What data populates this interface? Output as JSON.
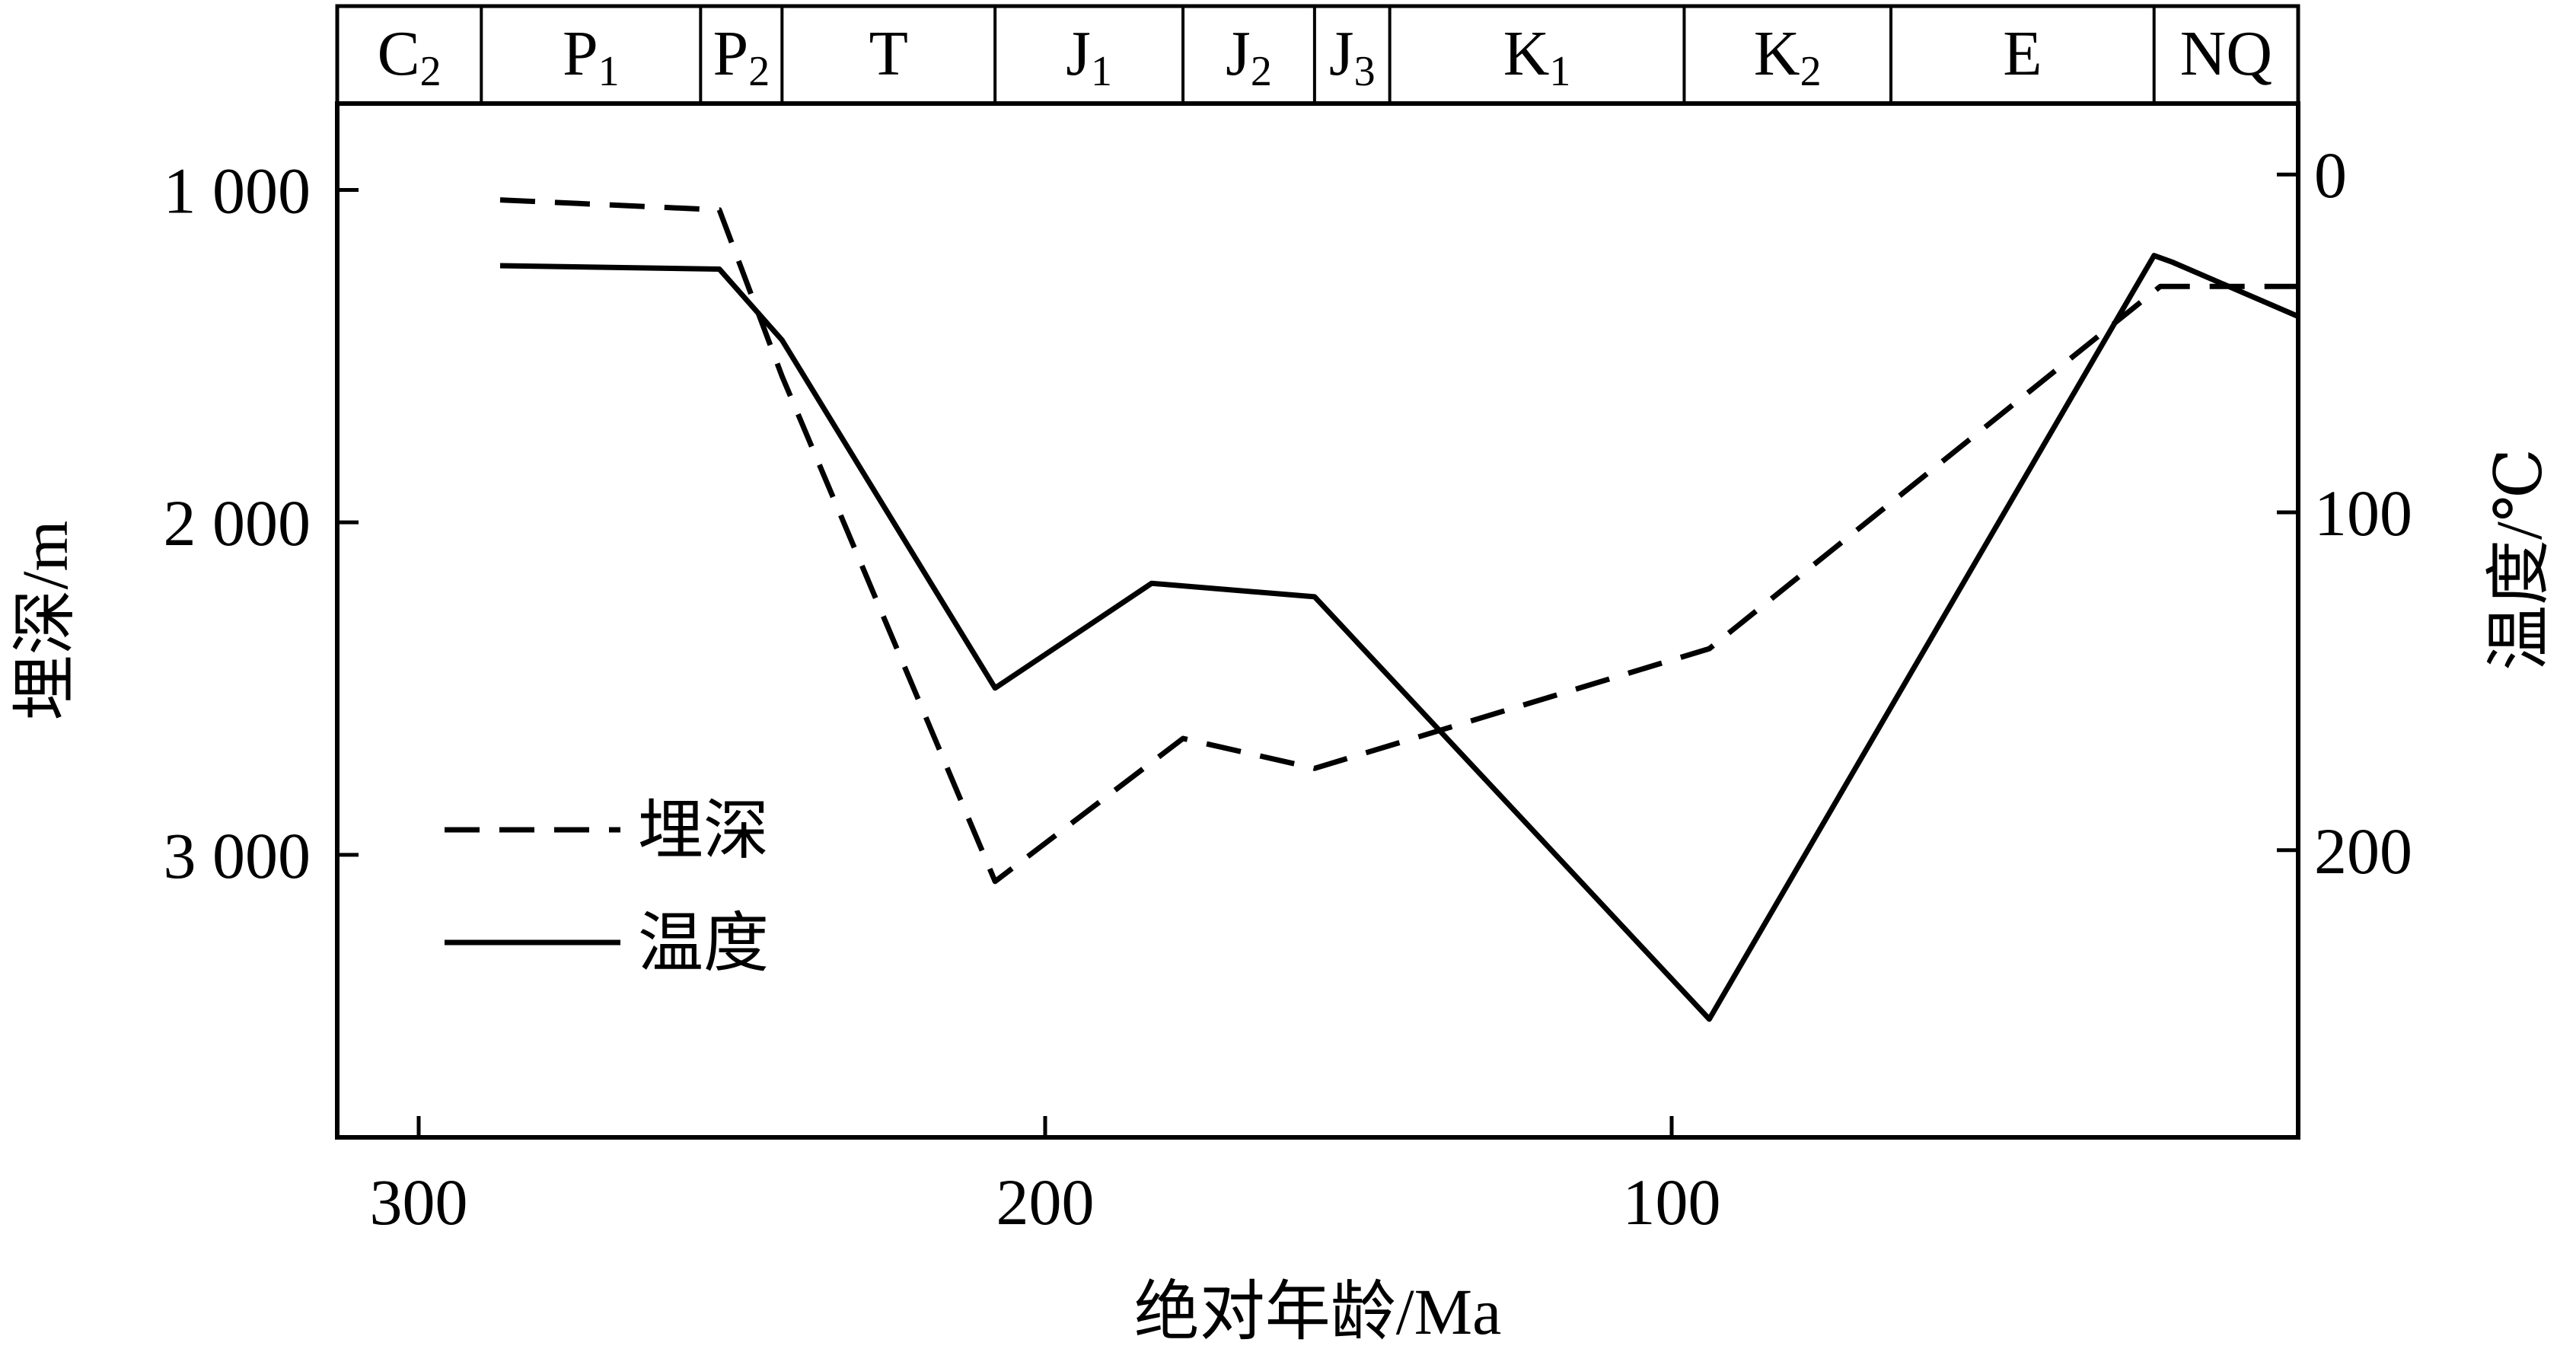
{
  "chart_data": {
    "type": "line",
    "title": "",
    "xlabel": "绝对年龄/Ma",
    "ylabel_left": "埋深/m",
    "ylabel_right": "温度/℃",
    "x_ticks": [
      300,
      200,
      100
    ],
    "x_tick_labels": [
      "300",
      "200",
      "100"
    ],
    "xlim": [
      313,
      0
    ],
    "ylim_left": [
      3850,
      740
    ],
    "ylim_right": [
      285,
      -21
    ],
    "left_ticks": [
      1000,
      2000,
      3000
    ],
    "left_tick_labels": [
      "1 000",
      "2 000",
      "3 000"
    ],
    "right_ticks": [
      0,
      100,
      200
    ],
    "right_tick_labels": [
      "0",
      "100",
      "200"
    ],
    "periods": [
      {
        "base": "C",
        "sub": "2",
        "from": 313,
        "to": 290
      },
      {
        "base": "P",
        "sub": "1",
        "from": 290,
        "to": 255
      },
      {
        "base": "P",
        "sub": "2",
        "from": 255,
        "to": 242
      },
      {
        "base": "T",
        "sub": "",
        "from": 242,
        "to": 208
      },
      {
        "base": "J",
        "sub": "1",
        "from": 208,
        "to": 178
      },
      {
        "base": "J",
        "sub": "2",
        "from": 178,
        "to": 157
      },
      {
        "base": "J",
        "sub": "3",
        "from": 157,
        "to": 145
      },
      {
        "base": "K",
        "sub": "1",
        "from": 145,
        "to": 98
      },
      {
        "base": "K",
        "sub": "2",
        "from": 98,
        "to": 65
      },
      {
        "base": "E",
        "sub": "",
        "from": 65,
        "to": 23
      },
      {
        "base": "NQ",
        "sub": "",
        "from": 23,
        "to": 0
      }
    ],
    "series": [
      {
        "name": "埋深",
        "axis": "left",
        "style": "dashed",
        "x": [
          287,
          252,
          242,
          208,
          178,
          157,
          94,
          22,
          0
        ],
        "y": [
          1030,
          1060,
          1560,
          3080,
          2650,
          2740,
          2380,
          1290,
          1290
        ]
      },
      {
        "name": "温度",
        "axis": "right",
        "style": "solid",
        "x": [
          287,
          252,
          242,
          208,
          183,
          157,
          94,
          23,
          20,
          0
        ],
        "y": [
          27,
          28,
          49,
          152,
          121,
          125,
          250,
          24,
          26,
          42
        ]
      }
    ],
    "legend": {
      "position": "lower-left",
      "items": [
        "埋深",
        "温度"
      ]
    },
    "grid": false,
    "colors": {
      "line": "#000000",
      "background": "#ffffff"
    }
  }
}
